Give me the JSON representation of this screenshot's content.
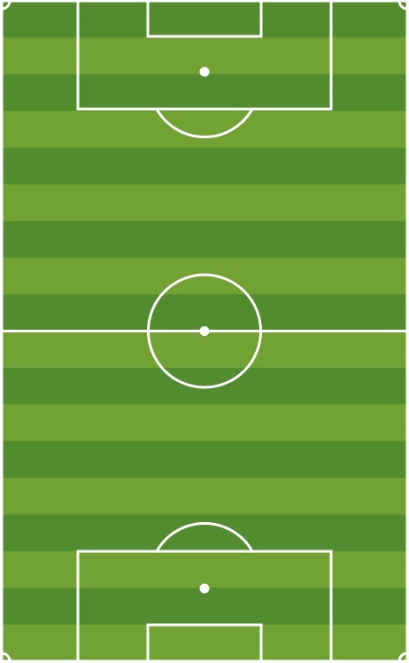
{
  "pitch": {
    "stripe_count": 18,
    "colors": {
      "stripe_light": "#72a233",
      "stripe_dark": "#538b2f",
      "line": "#ffffff",
      "background": "#ffffff"
    },
    "icons": {
      "penalty_spot": "circle-dot",
      "center_spot": "circle-dot"
    }
  }
}
